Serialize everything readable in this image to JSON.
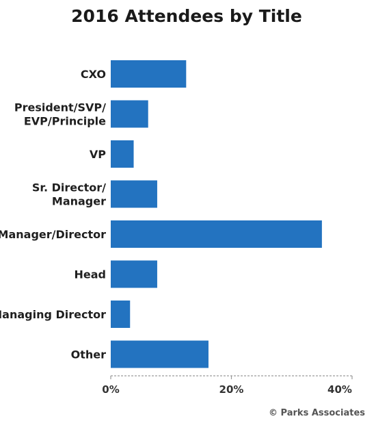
{
  "chart_data": {
    "type": "bar",
    "orientation": "horizontal",
    "title": "2016 Attendees by Title",
    "categories": [
      [
        "CXO"
      ],
      [
        "President/SVP/",
        "EVP/Principle"
      ],
      [
        "VP"
      ],
      [
        "Sr. Director/",
        "Manager"
      ],
      [
        "Manager/Director"
      ],
      [
        "Head"
      ],
      [
        "Managing Director"
      ],
      [
        "Other"
      ]
    ],
    "values": [
      12.5,
      6.2,
      3.8,
      7.7,
      35.0,
      7.7,
      3.2,
      16.2
    ],
    "xlim": [
      0,
      40
    ],
    "x_ticks": [
      "0%",
      "20%",
      "40%"
    ],
    "x_tick_values": [
      0,
      20,
      40
    ],
    "grid": false,
    "bar_color": "#2373c0"
  },
  "credit": "© Parks Associates"
}
